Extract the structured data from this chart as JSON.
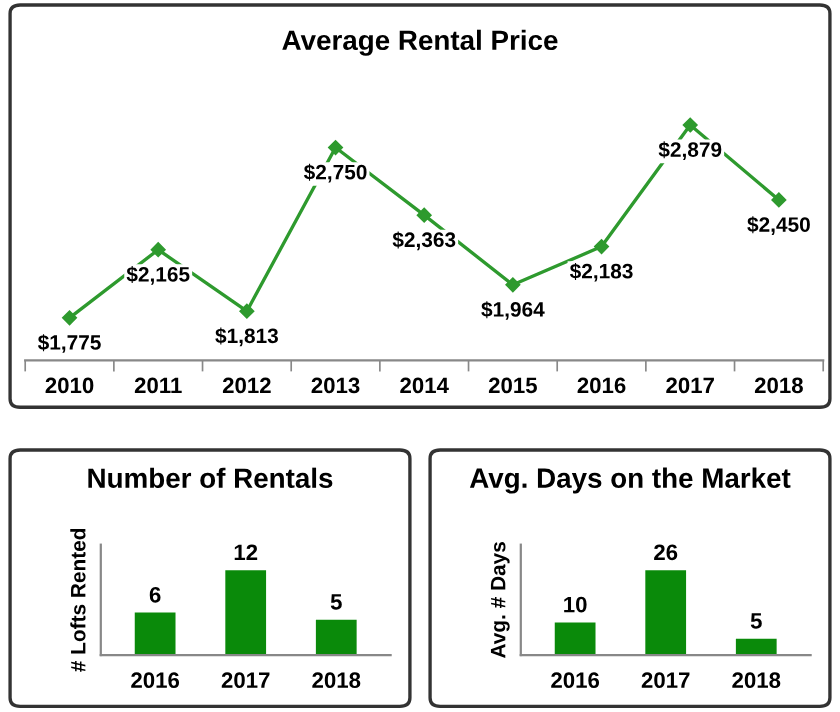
{
  "chart_data": [
    {
      "type": "line",
      "title": "Average Rental Price",
      "categories": [
        "2010",
        "2011",
        "2012",
        "2013",
        "2014",
        "2015",
        "2016",
        "2017",
        "2018"
      ],
      "values": [
        1775,
        2165,
        1813,
        2750,
        2363,
        1964,
        2183,
        2879,
        2450
      ],
      "value_labels": [
        "$1,775",
        "$2,165",
        "$1,813",
        "$2,750",
        "$2,363",
        "$1,964",
        "$2,183",
        "$2,879",
        "$2,450"
      ],
      "color": "#2e9a2e",
      "marker": "diamond",
      "line_style": "solid",
      "grid": false,
      "legend": false
    },
    {
      "type": "bar",
      "title": "Number of Rentals",
      "ylabel": "# Lofts Rented",
      "categories": [
        "2016",
        "2017",
        "2018"
      ],
      "values": [
        6,
        12,
        5
      ],
      "color": "#0a8a0a",
      "data_labels": true,
      "grid": false,
      "legend": false
    },
    {
      "type": "bar",
      "title": "Avg. Days on the Market",
      "ylabel": "Avg. # Days",
      "categories": [
        "2016",
        "2017",
        "2018"
      ],
      "values": [
        10,
        26,
        5
      ],
      "color": "#0a8a0a",
      "data_labels": true,
      "grid": false,
      "legend": false
    }
  ]
}
